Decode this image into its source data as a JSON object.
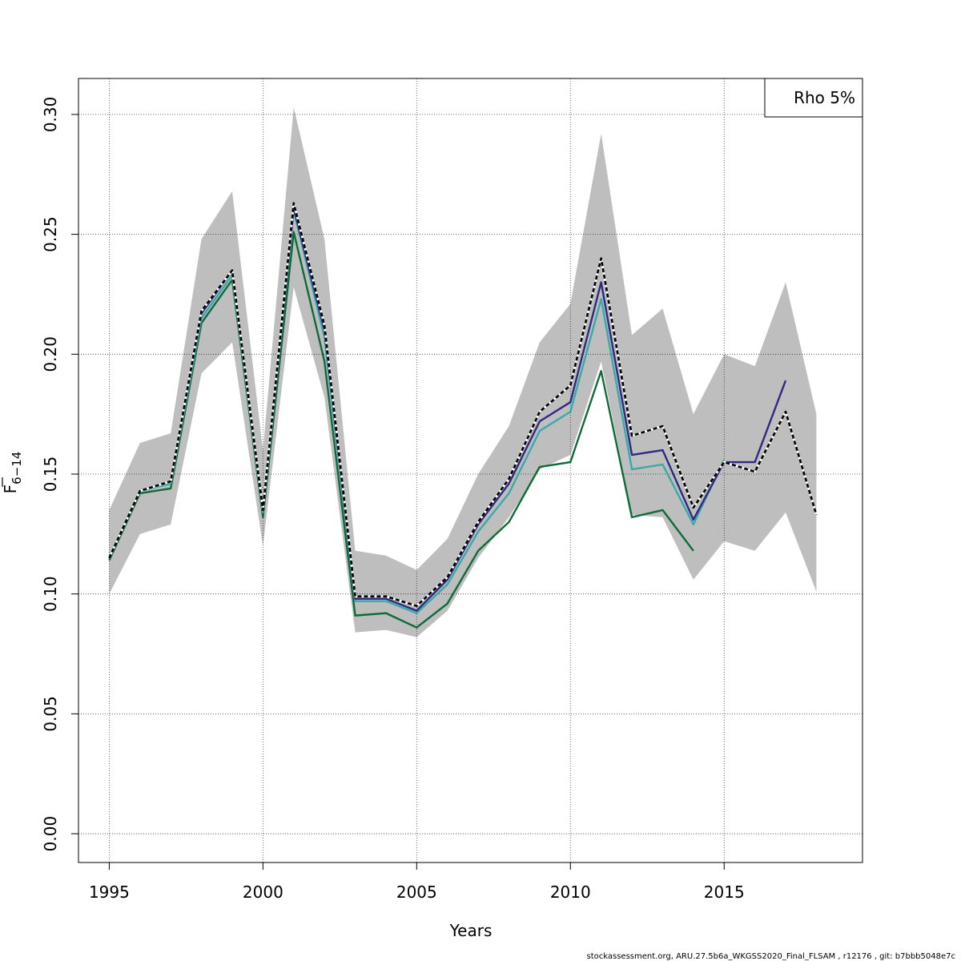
{
  "chart_data": {
    "type": "line",
    "xlabel": "Years",
    "ylabel_main": "F",
    "ylabel_sub": "6−14",
    "xlim": [
      1994,
      2019.5
    ],
    "ylim": [
      -0.012,
      0.315
    ],
    "xticks": [
      1995,
      2000,
      2005,
      2010,
      2015
    ],
    "yticks": [
      0.0,
      0.05,
      0.1,
      0.15,
      0.2,
      0.25,
      0.3
    ],
    "ytick_labels": [
      "0.00",
      "0.05",
      "0.10",
      "0.15",
      "0.20",
      "0.25",
      "0.30"
    ],
    "grid": true,
    "legend": {
      "position": "top-right",
      "text": "Rho 5%"
    },
    "confidence_band": {
      "color": "#bebebe",
      "x": [
        1995,
        1996,
        1997,
        1998,
        1999,
        2000,
        2001,
        2002,
        2003,
        2004,
        2005,
        2006,
        2007,
        2008,
        2009,
        2010,
        2011,
        2012,
        2013,
        2014,
        2015,
        2016,
        2017,
        2018
      ],
      "upper": [
        0.135,
        0.163,
        0.167,
        0.248,
        0.268,
        0.16,
        0.303,
        0.248,
        0.118,
        0.116,
        0.11,
        0.123,
        0.15,
        0.17,
        0.205,
        0.221,
        0.292,
        0.208,
        0.219,
        0.175,
        0.2,
        0.195,
        0.23,
        0.175
      ],
      "lower": [
        0.1,
        0.125,
        0.129,
        0.192,
        0.205,
        0.12,
        0.228,
        0.182,
        0.084,
        0.085,
        0.082,
        0.093,
        0.115,
        0.132,
        0.152,
        0.158,
        0.197,
        0.133,
        0.132,
        0.106,
        0.122,
        0.118,
        0.134,
        0.101
      ]
    },
    "series": [
      {
        "color": "#000000",
        "dashed": true,
        "x": [
          1995,
          1996,
          1997,
          1998,
          1999,
          2000,
          2001,
          2002,
          2003,
          2004,
          2005,
          2006,
          2007,
          2008,
          2009,
          2010,
          2011,
          2012,
          2013,
          2014,
          2015,
          2016,
          2017,
          2018
        ],
        "values": [
          0.115,
          0.143,
          0.147,
          0.218,
          0.235,
          0.135,
          0.263,
          0.212,
          0.099,
          0.099,
          0.095,
          0.107,
          0.13,
          0.148,
          0.176,
          0.187,
          0.24,
          0.166,
          0.17,
          0.136,
          0.155,
          0.151,
          0.176,
          0.133
        ]
      },
      {
        "color": "#2e2a83",
        "dashed": false,
        "x": [
          1995,
          1996,
          1997,
          1998,
          1999,
          2000,
          2001,
          2002,
          2003,
          2004,
          2005,
          2006,
          2007,
          2008,
          2009,
          2010,
          2011,
          2012,
          2013,
          2014,
          2015,
          2016,
          2017
        ],
        "values": [
          0.115,
          0.143,
          0.147,
          0.217,
          0.235,
          0.135,
          0.261,
          0.21,
          0.098,
          0.098,
          0.093,
          0.106,
          0.129,
          0.146,
          0.172,
          0.18,
          0.23,
          0.158,
          0.16,
          0.131,
          0.155,
          0.155,
          0.189
        ]
      },
      {
        "color": "#3aaaa8",
        "dashed": false,
        "x": [
          1995,
          1996,
          1997,
          1998,
          1999,
          2000,
          2001,
          2002,
          2003,
          2004,
          2005,
          2006,
          2007,
          2008,
          2009,
          2010,
          2011,
          2012,
          2013,
          2014,
          2015
        ],
        "values": [
          0.115,
          0.143,
          0.146,
          0.215,
          0.233,
          0.134,
          0.26,
          0.207,
          0.097,
          0.097,
          0.092,
          0.104,
          0.126,
          0.142,
          0.168,
          0.176,
          0.223,
          0.152,
          0.154,
          0.129,
          0.156
        ]
      },
      {
        "color": "#0d6b38",
        "dashed": false,
        "x": [
          1995,
          1996,
          1997,
          1998,
          1999,
          2000,
          2001,
          2002,
          2003,
          2004,
          2005,
          2006,
          2007,
          2008,
          2009,
          2010,
          2011,
          2012,
          2013,
          2014
        ],
        "values": [
          0.114,
          0.142,
          0.144,
          0.213,
          0.231,
          0.132,
          0.251,
          0.197,
          0.091,
          0.092,
          0.086,
          0.096,
          0.118,
          0.13,
          0.153,
          0.155,
          0.193,
          0.132,
          0.135,
          0.118
        ]
      }
    ]
  },
  "footer": {
    "credit": "stockassessment.org, ARU.27.5b6a_WKGSS2020_Final_FLSAM , r12176 , git: b7bbb5048e7c"
  }
}
